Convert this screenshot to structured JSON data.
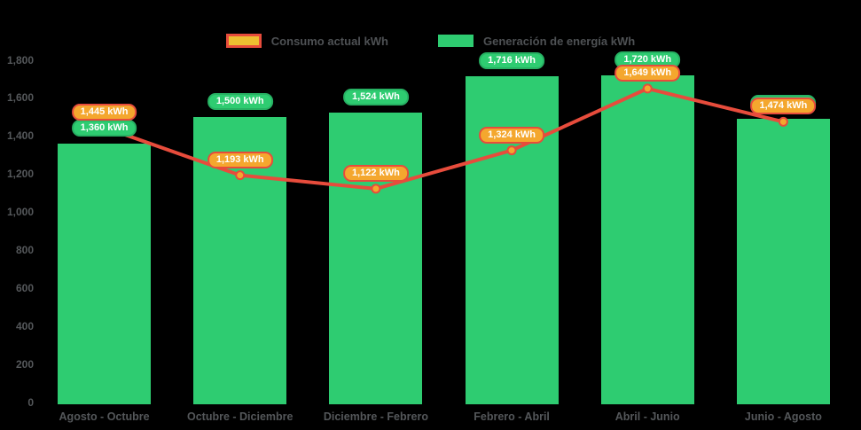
{
  "legend": {
    "consumo_label": "Consumo actual kWh",
    "generacion_label": "Generación de energía kWh"
  },
  "colors": {
    "background": "#000000",
    "bar_green": "#2ecc71",
    "bar_pill_border": "#27b163",
    "line_red": "#e74c3c",
    "marker_fill": "#f4a72e",
    "orange_pill_fill": "#f4a72e",
    "orange_pill_border": "#e74c3c",
    "legend_consumo_fill": "#edbf31",
    "legend_consumo_border": "#e74c3c",
    "axis_text": "#55585b"
  },
  "chart_data": {
    "type": "bar",
    "title": "",
    "categories": [
      "Agosto - Octubre",
      "Octubre - Diciembre",
      "Diciembre - Febrero",
      "Febrero - Abril",
      "Abril - Junio",
      "Junio - Agosto"
    ],
    "series": [
      {
        "name": "Generación de energía kWh",
        "type": "bar",
        "color": "#2ecc71",
        "values": [
          1360,
          1500,
          1524,
          1716,
          1720,
          1490
        ],
        "labels": [
          "1,360 kWh",
          "1,500 kWh",
          "1,524 kWh",
          "1,716 kWh",
          "1,720 kWh",
          "1,490 kWh"
        ]
      },
      {
        "name": "Consumo actual kWh",
        "type": "line",
        "color": "#e74c3c",
        "marker_fill": "#f4a72e",
        "values": [
          1445,
          1193,
          1122,
          1324,
          1649,
          1474
        ],
        "labels": [
          "1,445 kWh",
          "1,193 kWh",
          "1,122 kWh",
          "1,324 kWh",
          "1,649 kWh",
          "1,474 kWh"
        ]
      }
    ],
    "xlabel": "",
    "ylabel": "",
    "ylim": [
      0,
      1800
    ],
    "ytick_labels": [
      "0",
      "200",
      "400",
      "600",
      "800",
      "1,000",
      "1,200",
      "1,400",
      "1,600",
      "1,800"
    ],
    "grid": false,
    "legend_position": "top-center"
  }
}
